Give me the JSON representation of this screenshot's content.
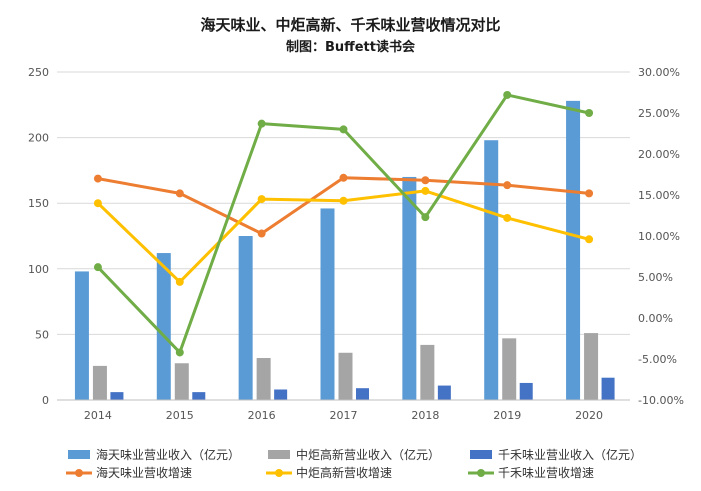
{
  "chart_data": {
    "type": "bar",
    "title": "海天味业、中炬高新、千禾味业营收情况对比",
    "subtitle": "制图：Buffett读书会",
    "categories": [
      "2014",
      "2015",
      "2016",
      "2017",
      "2018",
      "2019",
      "2020"
    ],
    "ylim_left": [
      0,
      250
    ],
    "yticks_left": [
      "0",
      "50",
      "100",
      "150",
      "200",
      "250"
    ],
    "ylim_right": [
      -10,
      30
    ],
    "yticks_right": [
      "-10.00%",
      "-5.00%",
      "0.00%",
      "5.00%",
      "10.00%",
      "15.00%",
      "20.00%",
      "25.00%",
      "30.00%"
    ],
    "grid": true,
    "legend_position": "bottom",
    "bar_series": [
      {
        "name": "海天味业营业收入（亿元）",
        "color": "#5b9bd5",
        "values": [
          98,
          112,
          125,
          146,
          170,
          198,
          228
        ]
      },
      {
        "name": "中炬高新营业收入（亿元）",
        "color": "#a5a5a5",
        "values": [
          26,
          28,
          32,
          36,
          42,
          47,
          51
        ]
      },
      {
        "name": "千禾味业营业收入（亿元）",
        "color": "#4472c4",
        "values": [
          6,
          6,
          8,
          9,
          11,
          13,
          17
        ]
      }
    ],
    "line_series": [
      {
        "name": "海天味业营收增速",
        "color": "#ed7d31",
        "values": [
          17.0,
          15.2,
          10.3,
          17.1,
          16.8,
          16.2,
          15.2
        ]
      },
      {
        "name": "中炬高新营收增速",
        "color": "#ffc000",
        "values": [
          14.0,
          4.4,
          14.5,
          14.3,
          15.5,
          12.2,
          9.6
        ]
      },
      {
        "name": "千禾味业营收增速",
        "color": "#70ad47",
        "values": [
          6.2,
          -4.2,
          23.7,
          23.0,
          12.3,
          27.2,
          25.0
        ]
      }
    ]
  }
}
